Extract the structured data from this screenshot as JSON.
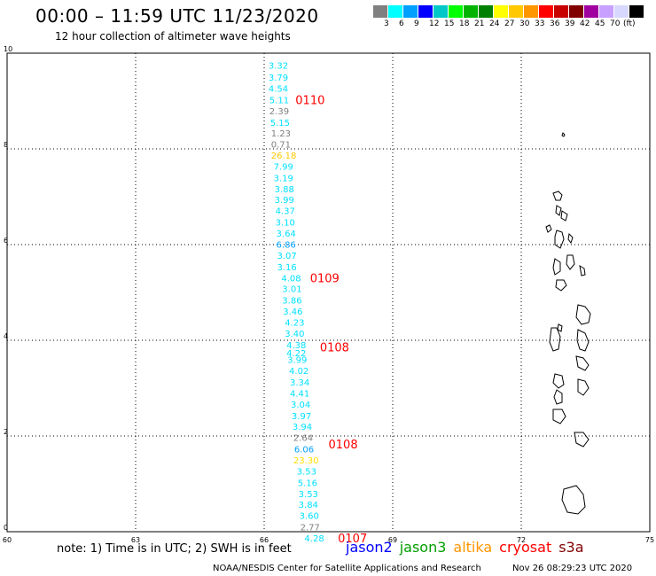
{
  "header": {
    "title": "00:00 – 11:59 UTC 11/23/2020",
    "subtitle": "12 hour collection of altimeter wave heights"
  },
  "legend": {
    "colors": [
      "#808080",
      "#00ffff",
      "#00a0ff",
      "#0000ff",
      "#00c8c8",
      "#00ff00",
      "#00b400",
      "#008000",
      "#ffff00",
      "#ffc800",
      "#ff9600",
      "#ff0000",
      "#c80000",
      "#800000",
      "#a000a0",
      "#c8a0ff",
      "#d8d8ff",
      "#000000"
    ],
    "labels": [
      "3",
      "6",
      "9",
      "12",
      "15",
      "18",
      "21",
      "24",
      "27",
      "30",
      "33",
      "36",
      "39",
      "42",
      "45",
      "70",
      "(ft)"
    ]
  },
  "map": {
    "x_ticks": [
      "60",
      "63",
      "66",
      "69",
      "72",
      "75"
    ],
    "y_ticks": [
      "0",
      "2",
      "4",
      "6",
      "8",
      "10"
    ],
    "observations": [
      {
        "t": "3.32",
        "c": "#00e0ff",
        "lon": 66.1,
        "lat": 9.75
      },
      {
        "t": "3.79",
        "c": "#00e0ff",
        "lon": 66.1,
        "lat": 9.5
      },
      {
        "t": "4.54",
        "c": "#00e0ff",
        "lon": 66.1,
        "lat": 9.27
      },
      {
        "t": "5.11",
        "c": "#00e0ff",
        "lon": 66.12,
        "lat": 9.03
      },
      {
        "t": "2.39",
        "c": "#808080",
        "lon": 66.12,
        "lat": 8.8
      },
      {
        "t": "5.15",
        "c": "#00e0ff",
        "lon": 66.14,
        "lat": 8.56
      },
      {
        "t": "1.23",
        "c": "#808080",
        "lon": 66.16,
        "lat": 8.33
      },
      {
        "t": "0.71",
        "c": "#808080",
        "lon": 66.16,
        "lat": 8.1
      },
      {
        "t": "26.18",
        "c": "#ffc800",
        "lon": 66.16,
        "lat": 7.87
      },
      {
        "t": "7.99",
        "c": "#00e0ff",
        "lon": 66.22,
        "lat": 7.64
      },
      {
        "t": "3.19",
        "c": "#00e0ff",
        "lon": 66.22,
        "lat": 7.4
      },
      {
        "t": "3.88",
        "c": "#00e0ff",
        "lon": 66.24,
        "lat": 7.17
      },
      {
        "t": "3.99",
        "c": "#00e0ff",
        "lon": 66.24,
        "lat": 6.94
      },
      {
        "t": "4.37",
        "c": "#00e0ff",
        "lon": 66.26,
        "lat": 6.71
      },
      {
        "t": "3.10",
        "c": "#00e0ff",
        "lon": 66.26,
        "lat": 6.47
      },
      {
        "t": "3.64",
        "c": "#00e0ff",
        "lon": 66.28,
        "lat": 6.24
      },
      {
        "t": "6.86",
        "c": "#00a0ff",
        "lon": 66.28,
        "lat": 6.01
      },
      {
        "t": "3.07",
        "c": "#00e0ff",
        "lon": 66.3,
        "lat": 5.78
      },
      {
        "t": "3.16",
        "c": "#00e0ff",
        "lon": 66.3,
        "lat": 5.54
      },
      {
        "t": "4.08",
        "c": "#00e0ff",
        "lon": 66.4,
        "lat": 5.31
      },
      {
        "t": "3.01",
        "c": "#00e0ff",
        "lon": 66.42,
        "lat": 5.08
      },
      {
        "t": "3.86",
        "c": "#00e0ff",
        "lon": 66.42,
        "lat": 4.84
      },
      {
        "t": "3.46",
        "c": "#00e0ff",
        "lon": 66.44,
        "lat": 4.61
      },
      {
        "t": "4.23",
        "c": "#00e0ff",
        "lon": 66.48,
        "lat": 4.38
      },
      {
        "t": "3.40",
        "c": "#00e0ff",
        "lon": 66.48,
        "lat": 4.15
      },
      {
        "t": "4.38",
        "c": "#00e0ff",
        "lon": 66.52,
        "lat": 3.91
      },
      {
        "t": "4.22",
        "c": "#00e0ff",
        "lon": 66.52,
        "lat": 3.74
      },
      {
        "t": "3.99",
        "c": "#00e0ff",
        "lon": 66.54,
        "lat": 3.6
      },
      {
        "t": "4.02",
        "c": "#00e0ff",
        "lon": 66.58,
        "lat": 3.37
      },
      {
        "t": "3.34",
        "c": "#00e0ff",
        "lon": 66.6,
        "lat": 3.13
      },
      {
        "t": "4.41",
        "c": "#00e0ff",
        "lon": 66.6,
        "lat": 2.9
      },
      {
        "t": "3.04",
        "c": "#00e0ff",
        "lon": 66.62,
        "lat": 2.67
      },
      {
        "t": "3.97",
        "c": "#00e0ff",
        "lon": 66.64,
        "lat": 2.43
      },
      {
        "t": "3.94",
        "c": "#00e0ff",
        "lon": 66.66,
        "lat": 2.2
      },
      {
        "t": "2.64",
        "c": "#808080",
        "lon": 66.68,
        "lat": 1.97
      },
      {
        "t": "6.06",
        "c": "#00a0ff",
        "lon": 66.7,
        "lat": 1.73
      },
      {
        "t": "23.30",
        "c": "#ffe000",
        "lon": 66.68,
        "lat": 1.5
      },
      {
        "t": "3.53",
        "c": "#00e0ff",
        "lon": 66.76,
        "lat": 1.27
      },
      {
        "t": "5.16",
        "c": "#00e0ff",
        "lon": 66.78,
        "lat": 1.03
      },
      {
        "t": "3.53",
        "c": "#00e0ff",
        "lon": 66.8,
        "lat": 0.8
      },
      {
        "t": "3.84",
        "c": "#00e0ff",
        "lon": 66.8,
        "lat": 0.57
      },
      {
        "t": "3.60",
        "c": "#00e0ff",
        "lon": 66.82,
        "lat": 0.34
      },
      {
        "t": "2.77",
        "c": "#808080",
        "lon": 66.84,
        "lat": 0.1
      },
      {
        "t": "4.28",
        "c": "#00e0ff",
        "lon": 66.94,
        "lat": -0.13
      }
    ],
    "pass_labels": [
      {
        "t": "0110",
        "lon": 66.73,
        "lat": 9.03
      },
      {
        "t": "0109",
        "lon": 67.07,
        "lat": 5.31
      },
      {
        "t": "0108",
        "lon": 67.3,
        "lat": 3.86
      },
      {
        "t": "0108",
        "lon": 67.5,
        "lat": 1.83
      },
      {
        "t": "0107",
        "lon": 67.72,
        "lat": -0.13
      }
    ]
  },
  "footer": {
    "note": "note: 1) Time is in UTC; 2) SWH is in feet",
    "satellites": [
      {
        "name": "jason2",
        "color": "#0000ff"
      },
      {
        "name": "jason3",
        "color": "#00a000"
      },
      {
        "name": "altika",
        "color": "#ff9600"
      },
      {
        "name": "cryosat",
        "color": "#ff0000"
      },
      {
        "name": "s3a",
        "color": "#800000"
      }
    ],
    "credit": "NOAA/NESDIS Center for Satellite Applications and Research",
    "timestamp": "Nov 26 08:29:23 UTC 2020"
  }
}
